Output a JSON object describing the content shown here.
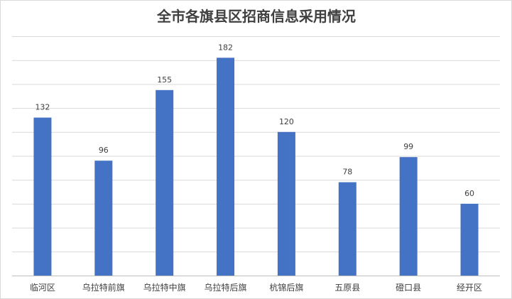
{
  "chart_data": {
    "type": "bar",
    "title": "全市各旗县区招商信息采用情况",
    "categories": [
      "临河区",
      "乌拉特前旗",
      "乌拉特中旗",
      "乌拉特后旗",
      "杭锦后旗",
      "五原县",
      "磴口县",
      "经开区"
    ],
    "values": [
      132,
      96,
      155,
      182,
      120,
      78,
      99,
      60
    ],
    "xlabel": "",
    "ylabel": "",
    "ylim": [
      0,
      200
    ],
    "grid": true,
    "legend": "none",
    "bar_color": "#4472C4"
  }
}
